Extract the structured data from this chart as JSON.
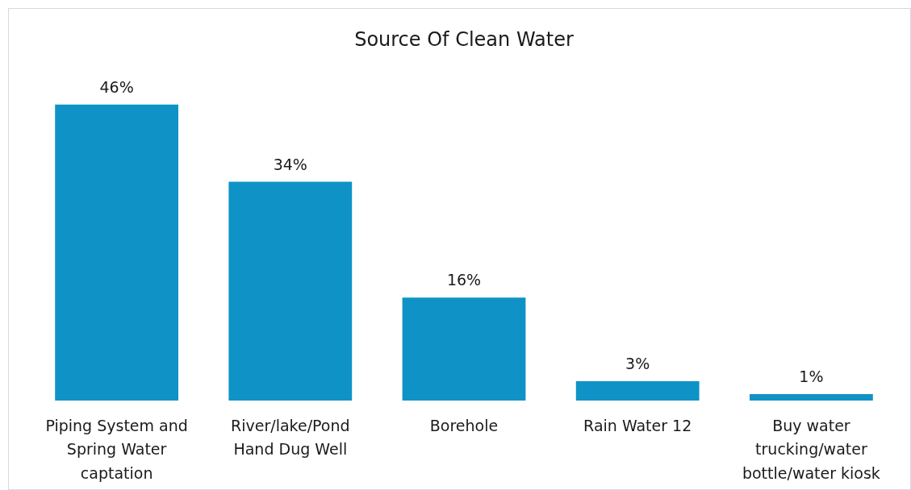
{
  "chart_data": {
    "type": "bar",
    "title": "Source Of Clean Water",
    "categories": [
      "Piping System and Spring Water captation",
      "River/lake/Pond Hand Dug Well",
      "Borehole",
      "Rain Water 12",
      "Buy water trucking/water bottle/water kiosk"
    ],
    "values": [
      46,
      34,
      16,
      3,
      1
    ],
    "color": "#0f93c6",
    "value_labels": [
      "46%",
      "34%",
      "16%",
      "3%",
      "1%"
    ],
    "grid": false,
    "legend": false
  }
}
